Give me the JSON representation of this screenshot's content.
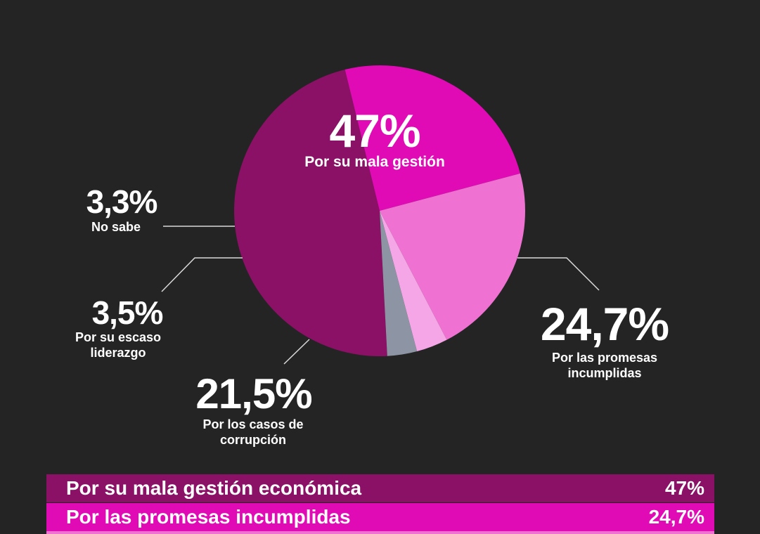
{
  "chart_data": {
    "type": "pie",
    "slices": [
      {
        "label": "Por su mala gestión",
        "value": 47,
        "display": "47%",
        "color": "#8a1165"
      },
      {
        "label": "Por las promesas incumplidas",
        "value": 24.7,
        "display": "24,7%",
        "color": "#e10bb6"
      },
      {
        "label": "Por los casos de corrupción",
        "value": 21.5,
        "display": "21,5%",
        "color": "#ef72d2"
      },
      {
        "label": "Por su escaso liderazgo",
        "value": 3.5,
        "display": "3,5%",
        "color": "#f5a6e6"
      },
      {
        "label": "No sabe",
        "value": 3.3,
        "display": "3,3%",
        "color": "#8d95a4"
      }
    ]
  },
  "callouts": {
    "mala_gestion": {
      "pct": "47%",
      "label": "Por su mala gestión"
    },
    "no_sabe": {
      "pct": "3,3%",
      "label": "No sabe"
    },
    "liderazgo": {
      "pct": "3,5%",
      "label": "Por su escaso liderazgo"
    },
    "corrupcion": {
      "pct": "21,5%",
      "label": "Por los casos de corrupción"
    },
    "promesas": {
      "pct": "24,7%",
      "label": "Por las promesas incumplidas"
    }
  },
  "legend": [
    {
      "label": "Por su mala gestión económica",
      "value": "47%",
      "color": "#8a1165"
    },
    {
      "label": "Por las promesas incumplidas",
      "value": "24,7%",
      "color": "#e10bb6"
    }
  ],
  "colors": {
    "background": "#242424",
    "leader_line": "#d9d9d9"
  }
}
